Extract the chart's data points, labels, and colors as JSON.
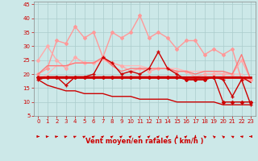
{
  "xlabel": "Vent moyen/en rafales ( km/h )",
  "xlim": [
    -0.5,
    23.5
  ],
  "ylim": [
    5,
    46
  ],
  "yticks": [
    5,
    10,
    15,
    20,
    25,
    30,
    35,
    40,
    45
  ],
  "xticks": [
    0,
    1,
    2,
    3,
    4,
    5,
    6,
    7,
    8,
    9,
    10,
    11,
    12,
    13,
    14,
    15,
    16,
    17,
    18,
    19,
    20,
    21,
    22,
    23
  ],
  "background_color": "#cce8e8",
  "grid_color": "#aacccc",
  "series": [
    {
      "data": [
        18,
        19,
        19,
        16,
        19,
        19,
        20,
        26,
        24,
        20,
        21,
        20,
        22,
        28,
        22,
        20,
        18,
        18,
        18,
        19,
        18,
        12,
        18,
        9
      ],
      "color": "#cc0000",
      "linewidth": 1.0,
      "marker": "+",
      "markersize": 3,
      "zorder": 6
    },
    {
      "data": [
        19,
        19,
        19,
        19,
        19,
        19,
        19,
        19,
        19,
        19,
        19,
        19,
        19,
        19,
        19,
        19,
        19,
        19,
        19,
        19,
        19,
        19,
        19,
        19
      ],
      "color": "#cc0000",
      "linewidth": 2.0,
      "marker": null,
      "zorder": 5
    },
    {
      "data": [
        18,
        19,
        19,
        19,
        19,
        19,
        19,
        19,
        19,
        19,
        19,
        19,
        19,
        19,
        19,
        19,
        19,
        19,
        19,
        19,
        19,
        19,
        19,
        17
      ],
      "color": "#cc0000",
      "linewidth": 1.0,
      "marker": null,
      "zorder": 5
    },
    {
      "data": [
        19,
        19,
        19,
        19,
        19,
        19,
        19,
        19,
        19,
        19,
        19,
        19,
        19,
        19,
        19,
        19,
        18,
        18,
        18,
        19,
        10,
        10,
        10,
        10
      ],
      "color": "#cc0000",
      "linewidth": 1.0,
      "marker": "D",
      "markersize": 2,
      "zorder": 6
    },
    {
      "data": [
        18,
        16,
        15,
        14,
        14,
        13,
        13,
        13,
        12,
        12,
        12,
        11,
        11,
        11,
        11,
        10,
        10,
        10,
        10,
        10,
        9,
        9,
        9,
        9
      ],
      "color": "#cc0000",
      "linewidth": 1.0,
      "marker": null,
      "zorder": 4
    },
    {
      "data": [
        20,
        22,
        32,
        31,
        37,
        33,
        35,
        26,
        35,
        33,
        35,
        41,
        33,
        35,
        33,
        29,
        32,
        32,
        27,
        29,
        27,
        29,
        18,
        18
      ],
      "color": "#ff9999",
      "linewidth": 1.0,
      "marker": "D",
      "markersize": 2,
      "zorder": 2
    },
    {
      "data": [
        25,
        30,
        25,
        22,
        26,
        24,
        24,
        26,
        24,
        23,
        21,
        22,
        21,
        22,
        22,
        21,
        21,
        19,
        20,
        20,
        20,
        20,
        25,
        18
      ],
      "color": "#ffaaaa",
      "linewidth": 1.0,
      "marker": "D",
      "markersize": 2,
      "zorder": 3
    },
    {
      "data": [
        20,
        23,
        23,
        23,
        24,
        24,
        24,
        26,
        23,
        21,
        22,
        22,
        22,
        22,
        22,
        21,
        21,
        20,
        21,
        21,
        21,
        20,
        27,
        18
      ],
      "color": "#ff7777",
      "linewidth": 1.0,
      "marker": null,
      "zorder": 3
    },
    {
      "data": [
        18,
        20,
        23,
        23,
        24,
        24,
        24,
        25,
        24,
        23,
        23,
        23,
        22,
        22,
        22,
        22,
        21,
        21,
        21,
        21,
        20,
        20,
        20,
        18
      ],
      "color": "#ffbbbb",
      "linewidth": 1.0,
      "marker": null,
      "zorder": 1
    }
  ],
  "arrow_angles": [
    90,
    80,
    75,
    70,
    65,
    60,
    55,
    50,
    50,
    50,
    50,
    45,
    45,
    45,
    45,
    0,
    45,
    0,
    315,
    315,
    315,
    300,
    285,
    270
  ]
}
